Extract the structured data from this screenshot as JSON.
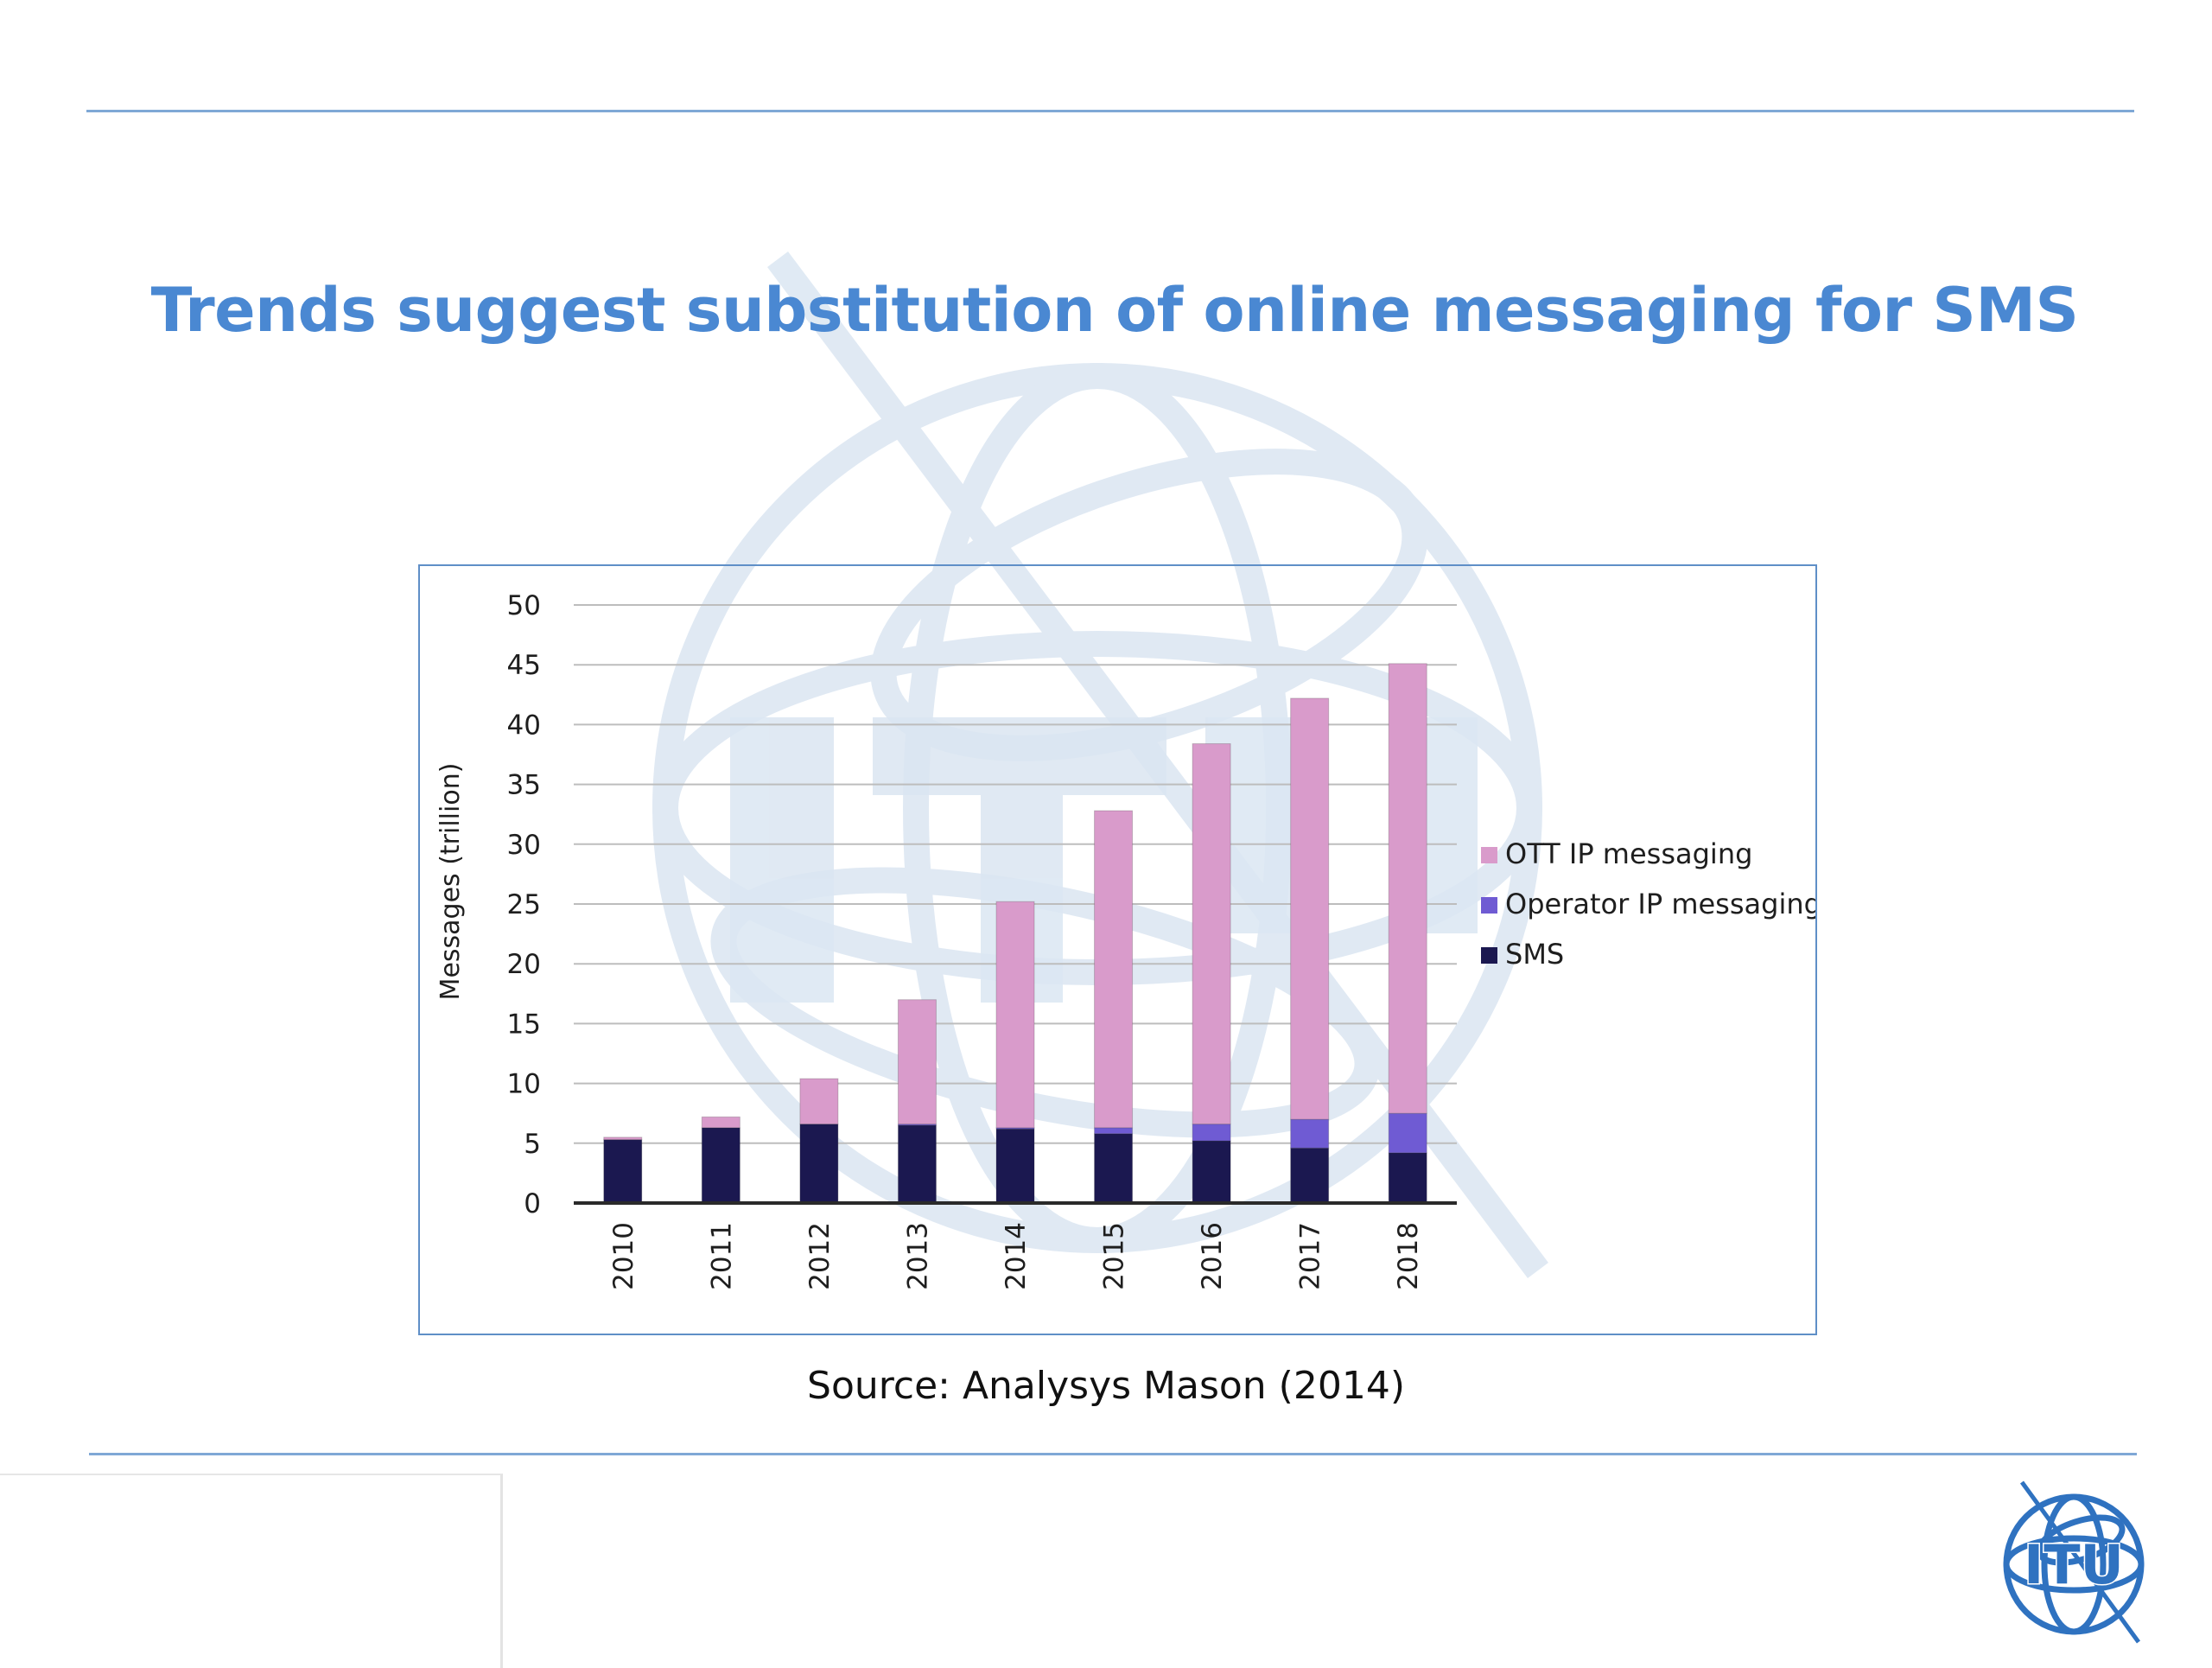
{
  "slide": {
    "title": "Trends suggest substitution of online messaging for SMS",
    "source": "Source: Analysys Mason (2014)",
    "logo_text": "ITU",
    "accent_color": "#4a88d2",
    "rule_color": "#7fa8d6"
  },
  "chart_data": {
    "type": "bar",
    "stacked": true,
    "title": "",
    "xlabel": "",
    "ylabel": "Messages (trillion)",
    "ylim": [
      0,
      50
    ],
    "yticks": [
      0,
      5,
      10,
      15,
      20,
      25,
      30,
      35,
      40,
      45,
      50
    ],
    "grid": true,
    "legend_position": "right",
    "categories": [
      "2010",
      "2011",
      "2012",
      "2013",
      "2014",
      "2015",
      "2016",
      "2017",
      "2018"
    ],
    "series": [
      {
        "name": "SMS",
        "color": "#1b1850",
        "values": [
          5.3,
          6.3,
          6.6,
          6.5,
          6.2,
          5.8,
          5.2,
          4.6,
          4.2
        ]
      },
      {
        "name": "Operator IP messaging",
        "color": "#6f5bd3",
        "values": [
          0,
          0,
          0,
          0.1,
          0.1,
          0.5,
          1.4,
          2.4,
          3.3
        ]
      },
      {
        "name": "OTT IP messaging",
        "color": "#d99bcb",
        "values": [
          0.2,
          0.9,
          3.8,
          10.4,
          18.9,
          26.5,
          31.8,
          35.2,
          37.6
        ]
      }
    ]
  }
}
